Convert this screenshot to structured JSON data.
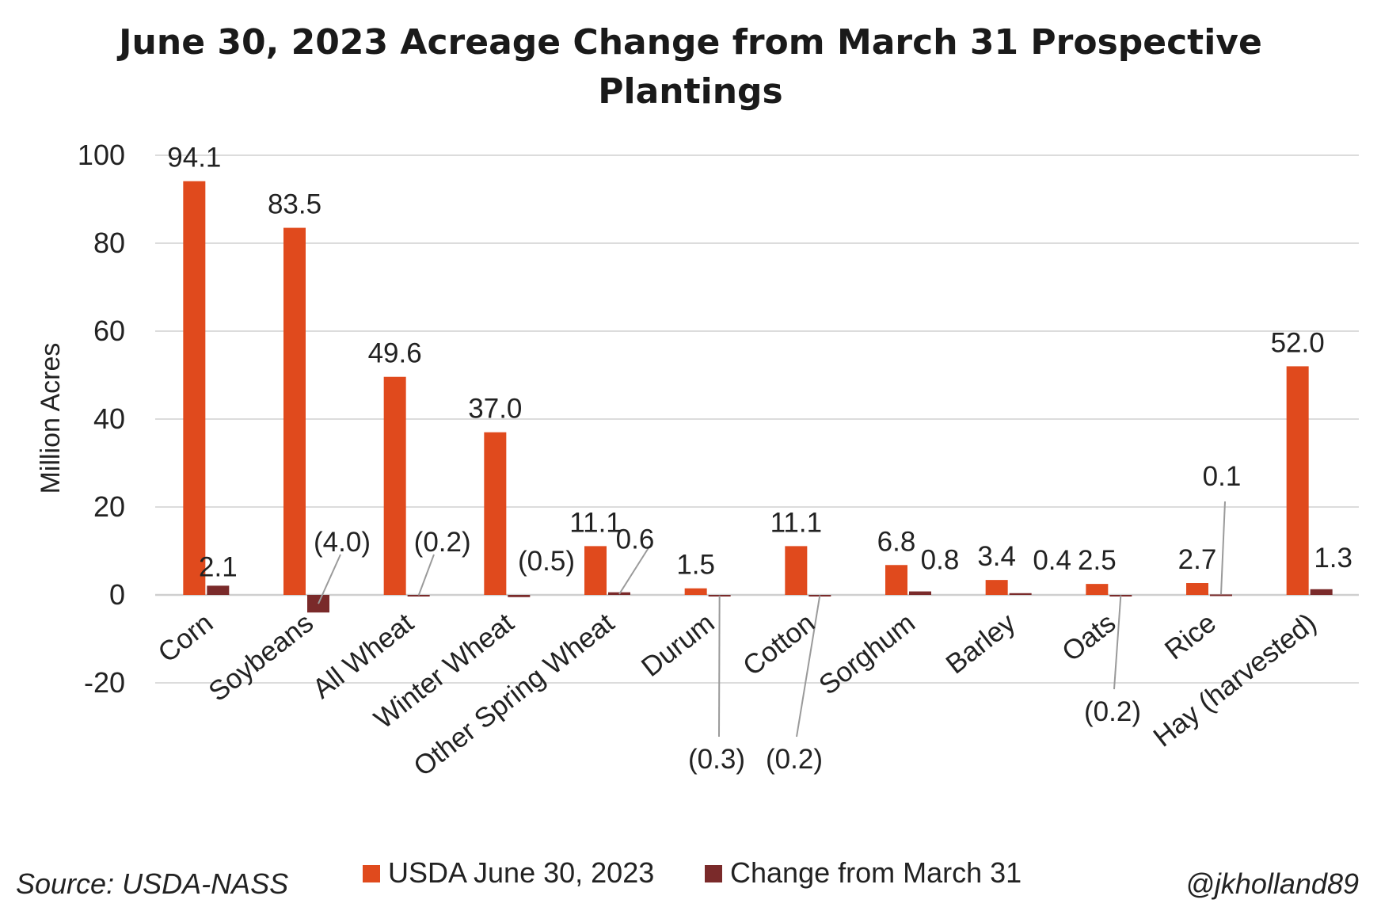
{
  "chart_data": {
    "type": "bar",
    "title": "June 30, 2023 Acreage Change from March 31 Prospective Plantings",
    "title_lines": [
      "June 30, 2023 Acreage Change from March 31 Prospective",
      "Plantings"
    ],
    "ylabel": "Million Acres",
    "xlabel": "",
    "ylim": [
      -20,
      100
    ],
    "yticks": [
      100,
      80,
      60,
      40,
      20,
      0,
      -20
    ],
    "grid": true,
    "legend_position": "bottom-center",
    "categories": [
      "Corn",
      "Soybeans",
      "All Wheat",
      "Winter Wheat",
      "Other Spring Wheat",
      "Durum",
      "Cotton",
      "Sorghum",
      "Barley",
      "Oats",
      "Rice",
      "Hay (harvested)"
    ],
    "series": [
      {
        "name": "USDA June 30, 2023",
        "color": "#e04a1d",
        "values": [
          94.1,
          83.5,
          49.6,
          37.0,
          11.1,
          1.5,
          11.1,
          6.8,
          3.4,
          2.5,
          2.7,
          52.0
        ],
        "labels": [
          "94.1",
          "83.5",
          "49.6",
          "37.0",
          "11.1",
          "1.5",
          "11.1",
          "6.8",
          "3.4",
          "2.5",
          "2.7",
          "52.0"
        ]
      },
      {
        "name": "Change from March 31",
        "color": "#7a2a2a",
        "values": [
          2.1,
          -4.0,
          -0.2,
          -0.5,
          0.6,
          -0.3,
          -0.2,
          0.8,
          0.4,
          -0.2,
          0.1,
          1.3
        ],
        "labels": [
          "2.1",
          "(4.0)",
          "(0.2)",
          "(0.5)",
          "0.6",
          "(0.3)",
          "(0.2)",
          "0.8",
          "0.4",
          "(0.2)",
          "0.1",
          "1.3"
        ]
      }
    ]
  },
  "footer": {
    "source": "Source: USDA-NASS",
    "credit": "@jkholland89"
  }
}
